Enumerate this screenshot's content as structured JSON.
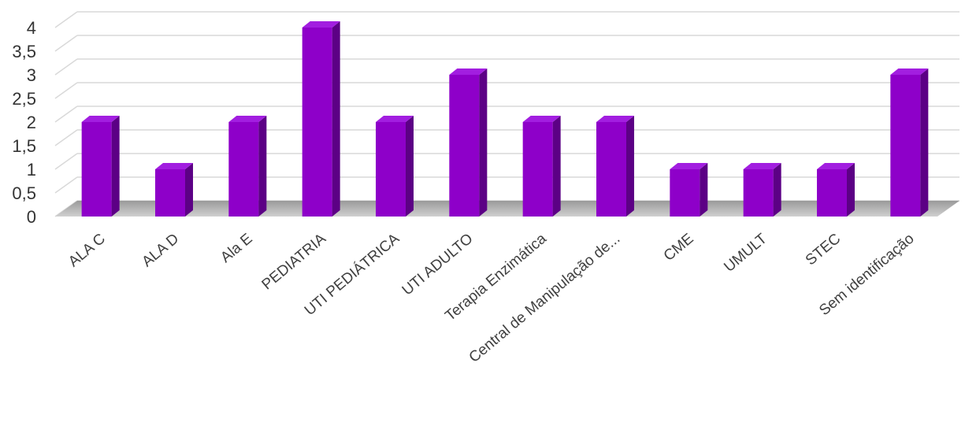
{
  "chart_data": {
    "type": "bar",
    "title": "",
    "xlabel": "",
    "ylabel": "",
    "categories": [
      "ALA C",
      "ALA D",
      "Ala E",
      "PEDIATRIA",
      "UTI PEDIÁTRICA",
      "UTI ADULTO",
      "Terapia Enzimática",
      "Central de Manipulação de...",
      "CME",
      "UMULT",
      "STEC",
      "Sem identificação"
    ],
    "values": [
      2,
      1,
      2,
      4,
      2,
      3,
      2,
      2,
      1,
      1,
      1,
      3
    ],
    "ylim": [
      0,
      4
    ],
    "yticks": [
      "0",
      "0,5",
      "1",
      "1,5",
      "2",
      "2,5",
      "3",
      "3,5",
      "4"
    ],
    "grid": true,
    "legend": "none",
    "style": "3d-column",
    "colors": {
      "bar_front": "#8e00c9",
      "bar_side": "#5c0085",
      "bar_top": "#a21ee0",
      "floor": "#7a7a7a",
      "grid": "#d9d9d9"
    }
  }
}
